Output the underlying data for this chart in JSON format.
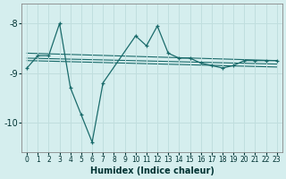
{
  "xlabel": "Humidex (Indice chaleur)",
  "ylabel": "",
  "background_color": "#d5eeee",
  "line_color": "#1a6b6b",
  "grid_color": "#c0dede",
  "xlim": [
    -0.5,
    23.5
  ],
  "ylim": [
    -10.6,
    -7.6
  ],
  "yticks": [
    -10,
    -9,
    -8
  ],
  "xticks": [
    0,
    1,
    2,
    3,
    4,
    5,
    6,
    7,
    8,
    9,
    10,
    11,
    12,
    13,
    14,
    15,
    16,
    17,
    18,
    19,
    20,
    21,
    22,
    23
  ],
  "main_series": {
    "x": [
      0,
      1,
      2,
      3,
      4,
      5,
      6,
      7,
      10,
      11,
      12,
      13,
      14,
      15,
      16,
      17,
      18,
      19,
      20,
      21,
      22,
      23
    ],
    "y": [
      -8.9,
      -8.65,
      -8.65,
      -8.0,
      -9.3,
      -9.85,
      -10.4,
      -9.2,
      -8.25,
      -8.45,
      -8.05,
      -8.6,
      -8.7,
      -8.7,
      -8.8,
      -8.85,
      -8.9,
      -8.85,
      -8.75,
      -8.75,
      -8.75,
      -8.75
    ]
  },
  "trend_lines": [
    {
      "x": [
        0,
        23
      ],
      "y": [
        -8.6,
        -8.75
      ]
    },
    {
      "x": [
        0,
        23
      ],
      "y": [
        -8.7,
        -8.82
      ]
    },
    {
      "x": [
        0,
        23
      ],
      "y": [
        -8.75,
        -8.88
      ]
    }
  ]
}
